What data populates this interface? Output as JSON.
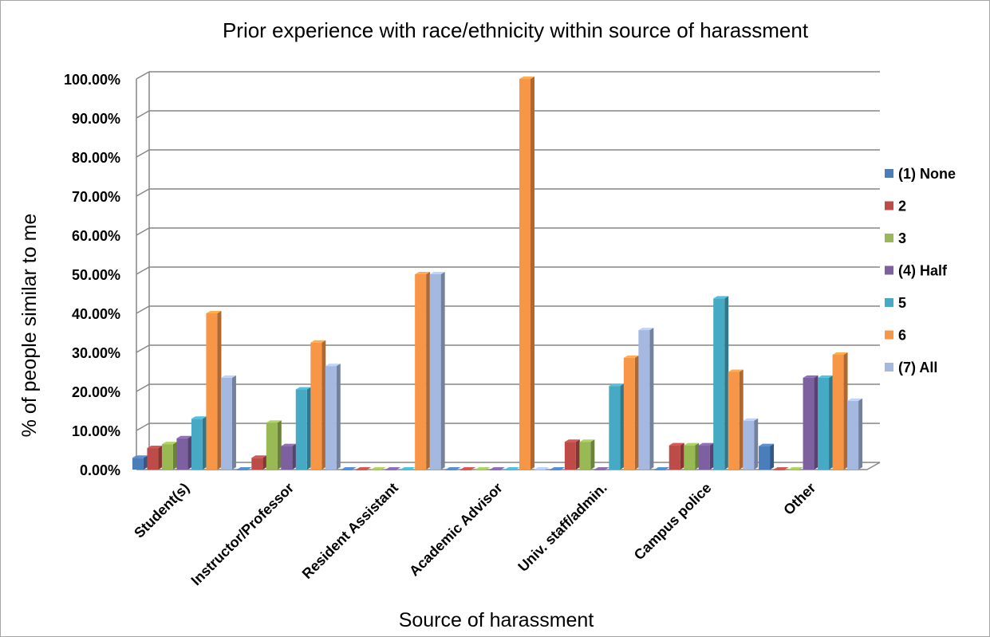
{
  "chart_data": {
    "type": "bar",
    "title": "Prior experience with race/ethnicity within source of harassment",
    "xlabel": "Source of harassment",
    "ylabel": "% of people similar to me",
    "ylim": [
      0,
      100
    ],
    "yticks": [
      "0.00%",
      "10.00%",
      "20.00%",
      "30.00%",
      "40.00%",
      "50.00%",
      "60.00%",
      "70.00%",
      "80.00%",
      "90.00%",
      "100.00%"
    ],
    "grid": true,
    "legend_position": "right",
    "categories": [
      "Student(s)",
      "Instructor/Professor",
      "Resident Assistant",
      "Academic Advisor",
      "Univ. staff/admin.",
      "Campus police",
      "Other"
    ],
    "series": [
      {
        "name": "(1) None",
        "color": "#4a7ebb",
        "values": [
          3.0,
          0.0,
          0.0,
          0.0,
          0.0,
          0.0,
          6.0
        ]
      },
      {
        "name": "2",
        "color": "#be4b48",
        "values": [
          5.5,
          3.0,
          0.0,
          0.0,
          7.1,
          6.2,
          0.0
        ]
      },
      {
        "name": "3",
        "color": "#98b954",
        "values": [
          6.5,
          12.0,
          0.0,
          0.0,
          7.1,
          6.2,
          0.0
        ]
      },
      {
        "name": "(4) Half",
        "color": "#7d60a0",
        "values": [
          8.0,
          6.0,
          0.0,
          0.0,
          0.0,
          6.2,
          23.5
        ]
      },
      {
        "name": "5",
        "color": "#46aac4",
        "values": [
          13.0,
          20.5,
          0.0,
          0.0,
          21.4,
          43.8,
          23.5
        ]
      },
      {
        "name": "6",
        "color": "#f79646",
        "values": [
          40.0,
          32.5,
          50.0,
          100.0,
          28.6,
          25.0,
          29.4
        ]
      },
      {
        "name": "(7) All",
        "color": "#a5b8e0",
        "values": [
          23.5,
          26.5,
          50.0,
          0.0,
          35.7,
          12.5,
          17.6
        ]
      }
    ]
  }
}
